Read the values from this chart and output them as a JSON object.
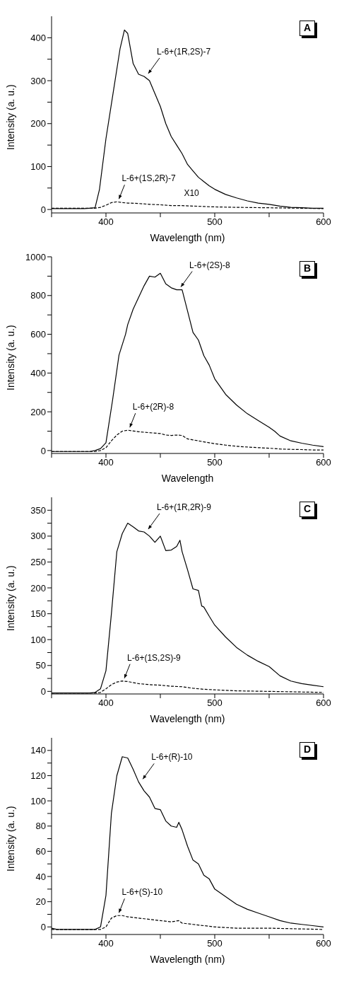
{
  "chart_data": [
    {
      "type": "line",
      "xlabel": "Wavelength (nm)",
      "ylabel": "Intensity (a. u.)",
      "xlim": [
        350,
        600
      ],
      "ylim": [
        -8,
        450
      ],
      "xticks": [
        {
          "value": 350,
          "label": null
        },
        400,
        {
          "value": 450,
          "label": null
        },
        500,
        {
          "value": 550,
          "label": null
        },
        600
      ],
      "yticks": [
        0,
        {
          "value": 50,
          "label": null
        },
        100,
        {
          "value": 150,
          "label": null
        },
        200,
        {
          "value": 250,
          "label": null
        },
        300,
        {
          "value": 350,
          "label": null
        },
        400
      ],
      "annotations": [
        "A",
        "X10"
      ],
      "series": [
        {
          "name": "L-6+(1R,2S)-7",
          "color": "#000000",
          "line_style": "solid",
          "x": [
            350,
            360,
            370,
            380,
            385,
            390,
            394,
            400,
            407,
            413,
            417,
            420,
            425,
            430,
            435,
            440,
            445,
            450,
            455,
            460,
            465,
            470,
            475,
            480,
            485,
            490,
            495,
            500,
            510,
            520,
            530,
            540,
            550,
            560,
            570,
            580,
            590,
            600
          ],
          "values": [
            2,
            2,
            2,
            2,
            3,
            4,
            46,
            165,
            278,
            375,
            418,
            410,
            340,
            315,
            310,
            300,
            270,
            240,
            200,
            170,
            150,
            130,
            105,
            90,
            75,
            65,
            55,
            47,
            35,
            27,
            20,
            15,
            12,
            8,
            5,
            4,
            3,
            3
          ]
        },
        {
          "name": "L-6+(1S,2R)-7",
          "color": "#000000",
          "line_style": "dashed",
          "x": [
            350,
            360,
            370,
            380,
            390,
            395,
            400,
            405,
            410,
            415,
            420,
            430,
            440,
            450,
            460,
            470,
            480,
            490,
            500,
            520,
            550,
            580,
            600
          ],
          "values": [
            3,
            3,
            3,
            3,
            3,
            5,
            10,
            16,
            18,
            16,
            15,
            14,
            12,
            11,
            9,
            9,
            8,
            7,
            6,
            5,
            4,
            3,
            2
          ]
        }
      ]
    },
    {
      "type": "line",
      "xlabel": "Wavelength",
      "ylabel": "Intensity (a. u.)",
      "xlim": [
        350,
        600
      ],
      "ylim": [
        -15,
        1000
      ],
      "xticks": [
        {
          "value": 350,
          "label": null
        },
        400,
        {
          "value": 450,
          "label": null
        },
        500,
        {
          "value": 550,
          "label": null
        },
        600
      ],
      "yticks": [
        0,
        {
          "value": 100,
          "label": null
        },
        200,
        {
          "value": 300,
          "label": null
        },
        400,
        {
          "value": 500,
          "label": null
        },
        600,
        {
          "value": 700,
          "label": null
        },
        800,
        {
          "value": 900,
          "label": null
        },
        1000
      ],
      "annotations": [
        "B"
      ],
      "series": [
        {
          "name": "L-6+(2S)-8",
          "color": "#000000",
          "line_style": "solid",
          "x": [
            350,
            360,
            370,
            380,
            385,
            390,
            395,
            400,
            406,
            412,
            418,
            420,
            425,
            430,
            435,
            440,
            445,
            450,
            455,
            460,
            465,
            470,
            475,
            480,
            485,
            490,
            495,
            500,
            510,
            520,
            530,
            540,
            550,
            555,
            560,
            570,
            580,
            590,
            600
          ],
          "values": [
            -5,
            -5,
            -5,
            -5,
            -5,
            0,
            10,
            40,
            257,
            493,
            600,
            650,
            730,
            790,
            850,
            900,
            895,
            915,
            860,
            840,
            830,
            830,
            720,
            610,
            570,
            490,
            440,
            370,
            290,
            235,
            190,
            155,
            120,
            100,
            75,
            50,
            38,
            28,
            20
          ]
        },
        {
          "name": "L-6+(2R)-8",
          "color": "#000000",
          "line_style": "dashed",
          "x": [
            350,
            360,
            370,
            380,
            390,
            395,
            400,
            405,
            410,
            415,
            420,
            430,
            440,
            450,
            455,
            460,
            465,
            470,
            475,
            480,
            490,
            500,
            510,
            520,
            530,
            540,
            550,
            560,
            570,
            580,
            590,
            600
          ],
          "values": [
            -5,
            -5,
            -5,
            -5,
            -5,
            0,
            15,
            50,
            80,
            100,
            105,
            97,
            92,
            88,
            80,
            78,
            80,
            78,
            60,
            55,
            45,
            35,
            28,
            22,
            18,
            15,
            12,
            8,
            6,
            5,
            3,
            3
          ]
        }
      ]
    },
    {
      "type": "line",
      "xlabel": "Wavelength (nm)",
      "ylabel": "Intensity (a. u.)",
      "xlim": [
        350,
        600
      ],
      "ylim": [
        -5,
        375
      ],
      "xticks": [
        {
          "value": 350,
          "label": null
        },
        400,
        {
          "value": 450,
          "label": null
        },
        500,
        {
          "value": 550,
          "label": null
        },
        600
      ],
      "yticks": [
        0,
        {
          "value": 25,
          "label": null
        },
        50,
        {
          "value": 75,
          "label": null
        },
        100,
        {
          "value": 125,
          "label": null
        },
        150,
        {
          "value": 175,
          "label": null
        },
        200,
        {
          "value": 225,
          "label": null
        },
        250,
        {
          "value": 275,
          "label": null
        },
        300,
        {
          "value": 325,
          "label": null
        },
        350
      ],
      "annotations": [
        "C"
      ],
      "series": [
        {
          "name": "L-6+(1R,2R)-9",
          "color": "#000000",
          "line_style": "solid",
          "x": [
            350,
            360,
            370,
            380,
            385,
            390,
            395,
            400,
            405,
            410,
            415,
            420,
            425,
            430,
            435,
            440,
            445,
            450,
            455,
            460,
            465,
            468,
            470,
            475,
            480,
            485,
            488,
            490,
            495,
            500,
            510,
            520,
            530,
            540,
            550,
            560,
            570,
            580,
            590,
            600
          ],
          "values": [
            -3,
            -3,
            -3,
            -3,
            -3,
            -2,
            5,
            40,
            150,
            270,
            305,
            325,
            318,
            310,
            308,
            300,
            288,
            300,
            272,
            273,
            280,
            292,
            270,
            235,
            198,
            195,
            165,
            163,
            145,
            128,
            105,
            85,
            70,
            58,
            48,
            30,
            20,
            15,
            12,
            9
          ]
        },
        {
          "name": "L-6+(1S,2S)-9",
          "color": "#000000",
          "line_style": "dashed",
          "x": [
            350,
            360,
            370,
            380,
            390,
            395,
            400,
            405,
            410,
            415,
            420,
            430,
            440,
            450,
            460,
            470,
            480,
            490,
            500,
            520,
            550,
            600
          ],
          "values": [
            -3,
            -3,
            -3,
            -3,
            -3,
            -2,
            5,
            13,
            18,
            20,
            19,
            15,
            13,
            12,
            10,
            9,
            6,
            4,
            3,
            1,
            0,
            -2
          ]
        }
      ]
    },
    {
      "type": "line",
      "xlabel": "Wavelength (nm)",
      "ylabel": "Intensity (a. u.)",
      "xlim": [
        350,
        600
      ],
      "ylim": [
        -6,
        150
      ],
      "xticks": [
        {
          "value": 350,
          "label": null
        },
        400,
        {
          "value": 450,
          "label": null
        },
        500,
        {
          "value": 550,
          "label": null
        },
        600
      ],
      "yticks": [
        0,
        {
          "value": 10,
          "label": null
        },
        20,
        {
          "value": 30,
          "label": null
        },
        40,
        {
          "value": 50,
          "label": null
        },
        60,
        {
          "value": 70,
          "label": null
        },
        80,
        {
          "value": 90,
          "label": null
        },
        100,
        {
          "value": 110,
          "label": null
        },
        120,
        {
          "value": 130,
          "label": null
        },
        140
      ],
      "annotations": [
        "D"
      ],
      "series": [
        {
          "name": "L-6+(R)-10",
          "color": "#000000",
          "line_style": "solid",
          "x": [
            350,
            355,
            370,
            380,
            390,
            395,
            400,
            405,
            410,
            415,
            420,
            425,
            430,
            435,
            440,
            445,
            450,
            455,
            460,
            465,
            467,
            470,
            475,
            480,
            485,
            490,
            495,
            500,
            510,
            520,
            530,
            540,
            550,
            560,
            570,
            580,
            590,
            600
          ],
          "values": [
            -1,
            -2,
            -2,
            -2,
            -2,
            0,
            25,
            90,
            120,
            135,
            134,
            125,
            115,
            108,
            103,
            94,
            93,
            84,
            80,
            79,
            83,
            77,
            64,
            53,
            50,
            41,
            38,
            30,
            24,
            18,
            14,
            11,
            8,
            5,
            3,
            2,
            1,
            0
          ]
        },
        {
          "name": "L-6+(S)-10",
          "color": "#000000",
          "line_style": "dashed",
          "x": [
            350,
            360,
            370,
            380,
            390,
            395,
            400,
            405,
            410,
            415,
            420,
            430,
            440,
            450,
            460,
            467,
            470,
            480,
            490,
            500,
            520,
            550,
            600
          ],
          "values": [
            -2,
            -2,
            -2,
            -2,
            -2,
            -2,
            0,
            7,
            9,
            9,
            8,
            7,
            6,
            5,
            4,
            5,
            3,
            2,
            1,
            0,
            -1,
            -1,
            -2
          ]
        }
      ]
    }
  ]
}
